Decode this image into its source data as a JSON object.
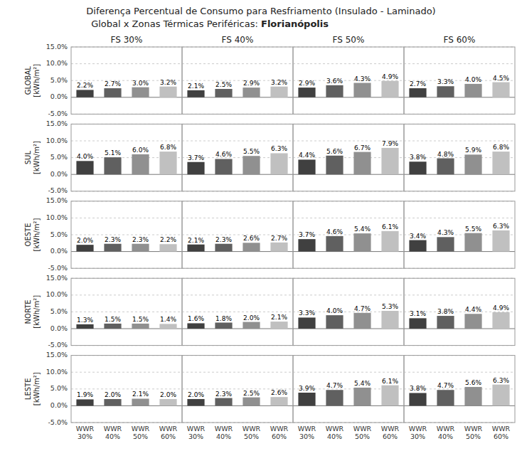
{
  "chart_data": [
    {
      "type": "bar",
      "annotations": [
        "Diferença Percentual de Consumo para Resfriamento (Insulado - Laminado)",
        "Global x Zonas Térmicas Periféricas: ",
        "Florianópolis"
      ],
      "title": "FS 30%",
      "y_label": "GLOBAL\n[kWh/m²]",
      "categories": [
        "WWR\n30%",
        "WWR\n40%",
        "WWR\n50%",
        "WWR\n60%"
      ],
      "values": [
        2.2,
        2.7,
        3.0,
        3.2
      ],
      "value_labels": [
        "2.2%",
        "2.7%",
        "3.0%",
        "3.2%"
      ],
      "colors": [
        "#404040",
        "#606060",
        "#909090",
        "#c0c0c0"
      ],
      "ylim": [
        -5,
        15
      ],
      "yticks": [
        {
          "value": -5,
          "label": "-5.0%"
        },
        {
          "value": 0,
          "label": "0.0%"
        },
        {
          "value": 5,
          "label": "5.0%"
        },
        {
          "value": 10,
          "label": "10.0%"
        },
        {
          "value": 15,
          "label": "15.0%"
        }
      ],
      "grid": true,
      "data_labels": true,
      "tick_labels": "y"
    },
    {
      "type": "bar",
      "title": "FS 40%",
      "categories": [
        "WWR\n30%",
        "WWR\n40%",
        "WWR\n50%",
        "WWR\n60%"
      ],
      "values": [
        2.1,
        2.5,
        2.9,
        3.2
      ],
      "value_labels": [
        "2.1%",
        "2.5%",
        "2.9%",
        "3.2%"
      ],
      "colors": [
        "#404040",
        "#606060",
        "#909090",
        "#c0c0c0"
      ],
      "ylim": [
        -5,
        15
      ],
      "yticks": [
        {
          "value": -5,
          "label": "-5.0%"
        },
        {
          "value": 0,
          "label": "0.0%"
        },
        {
          "value": 5,
          "label": "5.0%"
        },
        {
          "value": 10,
          "label": "10.0%"
        },
        {
          "value": 15,
          "label": "15.0%"
        }
      ],
      "grid": true,
      "data_labels": true,
      "tick_labels": false
    },
    {
      "type": "bar",
      "title": "FS 50%",
      "categories": [
        "WWR\n30%",
        "WWR\n40%",
        "WWR\n50%",
        "WWR\n60%"
      ],
      "values": [
        2.9,
        3.6,
        4.3,
        4.9
      ],
      "value_labels": [
        "2.9%",
        "3.6%",
        "4.3%",
        "4.9%"
      ],
      "colors": [
        "#404040",
        "#606060",
        "#909090",
        "#c0c0c0"
      ],
      "ylim": [
        -5,
        15
      ],
      "yticks": [
        {
          "value": -5,
          "label": "-5.0%"
        },
        {
          "value": 0,
          "label": "0.0%"
        },
        {
          "value": 5,
          "label": "5.0%"
        },
        {
          "value": 10,
          "label": "10.0%"
        },
        {
          "value": 15,
          "label": "15.0%"
        }
      ],
      "grid": true,
      "data_labels": true,
      "tick_labels": false
    },
    {
      "type": "bar",
      "title": "FS 60%",
      "categories": [
        "WWR\n30%",
        "WWR\n40%",
        "WWR\n50%",
        "WWR\n60%"
      ],
      "values": [
        2.7,
        3.3,
        4.0,
        4.5
      ],
      "value_labels": [
        "2.7%",
        "3.3%",
        "4.0%",
        "4.5%"
      ],
      "colors": [
        "#404040",
        "#606060",
        "#909090",
        "#c0c0c0"
      ],
      "ylim": [
        -5,
        15
      ],
      "yticks": [
        {
          "value": -5,
          "label": "-5.0%"
        },
        {
          "value": 0,
          "label": "0.0%"
        },
        {
          "value": 5,
          "label": "5.0%"
        },
        {
          "value": 10,
          "label": "10.0%"
        },
        {
          "value": 15,
          "label": "15.0%"
        }
      ],
      "grid": true,
      "data_labels": true,
      "tick_labels": false
    },
    {
      "type": "bar",
      "y_label": "SUL\n[kWh/m²]",
      "categories": [
        "WWR\n30%",
        "WWR\n40%",
        "WWR\n50%",
        "WWR\n60%"
      ],
      "values": [
        4.0,
        5.1,
        6.0,
        6.8
      ],
      "value_labels": [
        "4.0%",
        "5.1%",
        "6.0%",
        "6.8%"
      ],
      "colors": [
        "#404040",
        "#606060",
        "#909090",
        "#c0c0c0"
      ],
      "ylim": [
        -5,
        15
      ],
      "yticks": [
        {
          "value": -5,
          "label": "-5.0%"
        },
        {
          "value": 0,
          "label": "0.0%"
        },
        {
          "value": 5,
          "label": "5.0%"
        },
        {
          "value": 10,
          "label": "10.0%"
        },
        {
          "value": 15,
          "label": "15.0%"
        }
      ],
      "grid": true,
      "data_labels": true,
      "tick_labels": "y"
    },
    {
      "type": "bar",
      "categories": [
        "WWR\n30%",
        "WWR\n40%",
        "WWR\n50%",
        "WWR\n60%"
      ],
      "values": [
        3.7,
        4.6,
        5.5,
        6.3
      ],
      "value_labels": [
        "3.7%",
        "4.6%",
        "5.5%",
        "6.3%"
      ],
      "colors": [
        "#404040",
        "#606060",
        "#909090",
        "#c0c0c0"
      ],
      "ylim": [
        -5,
        15
      ],
      "yticks": [
        {
          "value": -5,
          "label": "-5.0%"
        },
        {
          "value": 0,
          "label": "0.0%"
        },
        {
          "value": 5,
          "label": "5.0%"
        },
        {
          "value": 10,
          "label": "10.0%"
        },
        {
          "value": 15,
          "label": "15.0%"
        }
      ],
      "grid": true,
      "data_labels": true,
      "tick_labels": false
    },
    {
      "type": "bar",
      "categories": [
        "WWR\n30%",
        "WWR\n40%",
        "WWR\n50%",
        "WWR\n60%"
      ],
      "values": [
        4.4,
        5.6,
        6.7,
        7.9
      ],
      "value_labels": [
        "4.4%",
        "5.6%",
        "6.7%",
        "7.9%"
      ],
      "colors": [
        "#404040",
        "#606060",
        "#909090",
        "#c0c0c0"
      ],
      "ylim": [
        -5,
        15
      ],
      "yticks": [
        {
          "value": -5,
          "label": "-5.0%"
        },
        {
          "value": 0,
          "label": "0.0%"
        },
        {
          "value": 5,
          "label": "5.0%"
        },
        {
          "value": 10,
          "label": "10.0%"
        },
        {
          "value": 15,
          "label": "15.0%"
        }
      ],
      "grid": true,
      "data_labels": true,
      "tick_labels": false
    },
    {
      "type": "bar",
      "categories": [
        "WWR\n30%",
        "WWR\n40%",
        "WWR\n50%",
        "WWR\n60%"
      ],
      "values": [
        3.8,
        4.8,
        5.9,
        6.8
      ],
      "value_labels": [
        "3.8%",
        "4.8%",
        "5.9%",
        "6.8%"
      ],
      "colors": [
        "#404040",
        "#606060",
        "#909090",
        "#c0c0c0"
      ],
      "ylim": [
        -5,
        15
      ],
      "yticks": [
        {
          "value": -5,
          "label": "-5.0%"
        },
        {
          "value": 0,
          "label": "0.0%"
        },
        {
          "value": 5,
          "label": "5.0%"
        },
        {
          "value": 10,
          "label": "10.0%"
        },
        {
          "value": 15,
          "label": "15.0%"
        }
      ],
      "grid": true,
      "data_labels": true,
      "tick_labels": false
    },
    {
      "type": "bar",
      "y_label": "OESTE\n[kWh/m²]",
      "categories": [
        "WWR\n30%",
        "WWR\n40%",
        "WWR\n50%",
        "WWR\n60%"
      ],
      "values": [
        2.0,
        2.3,
        2.3,
        2.2
      ],
      "value_labels": [
        "2.0%",
        "2.3%",
        "2.3%",
        "2.2%"
      ],
      "colors": [
        "#404040",
        "#606060",
        "#909090",
        "#c0c0c0"
      ],
      "ylim": [
        -5,
        15
      ],
      "yticks": [
        {
          "value": -5,
          "label": "-5.0%"
        },
        {
          "value": 0,
          "label": "0.0%"
        },
        {
          "value": 5,
          "label": "5.0%"
        },
        {
          "value": 10,
          "label": "10.0%"
        },
        {
          "value": 15,
          "label": "15.0%"
        }
      ],
      "grid": true,
      "data_labels": true,
      "tick_labels": "y"
    },
    {
      "type": "bar",
      "categories": [
        "WWR\n30%",
        "WWR\n40%",
        "WWR\n50%",
        "WWR\n60%"
      ],
      "values": [
        2.1,
        2.3,
        2.6,
        2.7
      ],
      "value_labels": [
        "2.1%",
        "2.3%",
        "2.6%",
        "2.7%"
      ],
      "colors": [
        "#404040",
        "#606060",
        "#909090",
        "#c0c0c0"
      ],
      "ylim": [
        -5,
        15
      ],
      "yticks": [
        {
          "value": -5,
          "label": "-5.0%"
        },
        {
          "value": 0,
          "label": "0.0%"
        },
        {
          "value": 5,
          "label": "5.0%"
        },
        {
          "value": 10,
          "label": "10.0%"
        },
        {
          "value": 15,
          "label": "15.0%"
        }
      ],
      "grid": true,
      "data_labels": true,
      "tick_labels": false
    },
    {
      "type": "bar",
      "categories": [
        "WWR\n30%",
        "WWR\n40%",
        "WWR\n50%",
        "WWR\n60%"
      ],
      "values": [
        3.7,
        4.6,
        5.4,
        6.1
      ],
      "value_labels": [
        "3.7%",
        "4.6%",
        "5.4%",
        "6.1%"
      ],
      "colors": [
        "#404040",
        "#606060",
        "#909090",
        "#c0c0c0"
      ],
      "ylim": [
        -5,
        15
      ],
      "yticks": [
        {
          "value": -5,
          "label": "-5.0%"
        },
        {
          "value": 0,
          "label": "0.0%"
        },
        {
          "value": 5,
          "label": "5.0%"
        },
        {
          "value": 10,
          "label": "10.0%"
        },
        {
          "value": 15,
          "label": "15.0%"
        }
      ],
      "grid": true,
      "data_labels": true,
      "tick_labels": false
    },
    {
      "type": "bar",
      "categories": [
        "WWR\n30%",
        "WWR\n40%",
        "WWR\n50%",
        "WWR\n60%"
      ],
      "values": [
        3.4,
        4.3,
        5.5,
        6.3
      ],
      "value_labels": [
        "3.4%",
        "4.3%",
        "5.5%",
        "6.3%"
      ],
      "colors": [
        "#404040",
        "#606060",
        "#909090",
        "#c0c0c0"
      ],
      "ylim": [
        -5,
        15
      ],
      "yticks": [
        {
          "value": -5,
          "label": "-5.0%"
        },
        {
          "value": 0,
          "label": "0.0%"
        },
        {
          "value": 5,
          "label": "5.0%"
        },
        {
          "value": 10,
          "label": "10.0%"
        },
        {
          "value": 15,
          "label": "15.0%"
        }
      ],
      "grid": true,
      "data_labels": true,
      "tick_labels": false
    },
    {
      "type": "bar",
      "y_label": "NORTE\n[kWh/m²]",
      "categories": [
        "WWR\n30%",
        "WWR\n40%",
        "WWR\n50%",
        "WWR\n60%"
      ],
      "values": [
        1.3,
        1.5,
        1.5,
        1.4
      ],
      "value_labels": [
        "1.3%",
        "1.5%",
        "1.5%",
        "1.4%"
      ],
      "colors": [
        "#404040",
        "#606060",
        "#909090",
        "#c0c0c0"
      ],
      "ylim": [
        -5,
        15
      ],
      "yticks": [
        {
          "value": -5,
          "label": "-5.0%"
        },
        {
          "value": 0,
          "label": "0.0%"
        },
        {
          "value": 5,
          "label": "5.0%"
        },
        {
          "value": 10,
          "label": "10.0%"
        },
        {
          "value": 15,
          "label": "15.0%"
        }
      ],
      "grid": true,
      "data_labels": true,
      "tick_labels": "y"
    },
    {
      "type": "bar",
      "categories": [
        "WWR\n30%",
        "WWR\n40%",
        "WWR\n50%",
        "WWR\n60%"
      ],
      "values": [
        1.6,
        1.8,
        2.0,
        2.1
      ],
      "value_labels": [
        "1.6%",
        "1.8%",
        "2.0%",
        "2.1%"
      ],
      "colors": [
        "#404040",
        "#606060",
        "#909090",
        "#c0c0c0"
      ],
      "ylim": [
        -5,
        15
      ],
      "yticks": [
        {
          "value": -5,
          "label": "-5.0%"
        },
        {
          "value": 0,
          "label": "0.0%"
        },
        {
          "value": 5,
          "label": "5.0%"
        },
        {
          "value": 10,
          "label": "10.0%"
        },
        {
          "value": 15,
          "label": "15.0%"
        }
      ],
      "grid": true,
      "data_labels": true,
      "tick_labels": false
    },
    {
      "type": "bar",
      "categories": [
        "WWR\n30%",
        "WWR\n40%",
        "WWR\n50%",
        "WWR\n60%"
      ],
      "values": [
        3.3,
        4.0,
        4.7,
        5.3
      ],
      "value_labels": [
        "3.3%",
        "4.0%",
        "4.7%",
        "5.3%"
      ],
      "colors": [
        "#404040",
        "#606060",
        "#909090",
        "#c0c0c0"
      ],
      "ylim": [
        -5,
        15
      ],
      "yticks": [
        {
          "value": -5,
          "label": "-5.0%"
        },
        {
          "value": 0,
          "label": "0.0%"
        },
        {
          "value": 5,
          "label": "5.0%"
        },
        {
          "value": 10,
          "label": "10.0%"
        },
        {
          "value": 15,
          "label": "15.0%"
        }
      ],
      "grid": true,
      "data_labels": true,
      "tick_labels": false
    },
    {
      "type": "bar",
      "categories": [
        "WWR\n30%",
        "WWR\n40%",
        "WWR\n50%",
        "WWR\n60%"
      ],
      "values": [
        3.1,
        3.8,
        4.4,
        4.9
      ],
      "value_labels": [
        "3.1%",
        "3.8%",
        "4.4%",
        "4.9%"
      ],
      "colors": [
        "#404040",
        "#606060",
        "#909090",
        "#c0c0c0"
      ],
      "ylim": [
        -5,
        15
      ],
      "yticks": [
        {
          "value": -5,
          "label": "-5.0%"
        },
        {
          "value": 0,
          "label": "0.0%"
        },
        {
          "value": 5,
          "label": "5.0%"
        },
        {
          "value": 10,
          "label": "10.0%"
        },
        {
          "value": 15,
          "label": "15.0%"
        }
      ],
      "grid": true,
      "data_labels": true,
      "tick_labels": false
    },
    {
      "type": "bar",
      "y_label": "LESTE\n[kWh/m²]",
      "categories": [
        "WWR\n30%",
        "WWR\n40%",
        "WWR\n50%",
        "WWR\n60%"
      ],
      "values": [
        1.9,
        2.0,
        2.1,
        2.0
      ],
      "value_labels": [
        "1.9%",
        "2.0%",
        "2.1%",
        "2.0%"
      ],
      "colors": [
        "#404040",
        "#606060",
        "#909090",
        "#c0c0c0"
      ],
      "ylim": [
        -5,
        15
      ],
      "yticks": [
        {
          "value": -5,
          "label": "-5.0%"
        },
        {
          "value": 0,
          "label": "0.0%"
        },
        {
          "value": 5,
          "label": "5.0%"
        },
        {
          "value": 10,
          "label": "10.0%"
        },
        {
          "value": 15,
          "label": "15.0%"
        }
      ],
      "grid": true,
      "data_labels": true
    },
    {
      "type": "bar",
      "categories": [
        "WWR\n30%",
        "WWR\n40%",
        "WWR\n50%",
        "WWR\n60%"
      ],
      "values": [
        2.0,
        2.3,
        2.5,
        2.6
      ],
      "value_labels": [
        "2.0%",
        "2.3%",
        "2.5%",
        "2.6%"
      ],
      "colors": [
        "#404040",
        "#606060",
        "#909090",
        "#c0c0c0"
      ],
      "ylim": [
        -5,
        15
      ],
      "yticks": [
        {
          "value": -5,
          "label": "-5.0%"
        },
        {
          "value": 0,
          "label": "0.0%"
        },
        {
          "value": 5,
          "label": "5.0%"
        },
        {
          "value": 10,
          "label": "10.0%"
        },
        {
          "value": 15,
          "label": "15.0%"
        }
      ],
      "grid": true,
      "data_labels": true,
      "tick_labels": "x"
    },
    {
      "type": "bar",
      "categories": [
        "WWR\n30%",
        "WWR\n40%",
        "WWR\n50%",
        "WWR\n60%"
      ],
      "values": [
        3.9,
        4.7,
        5.4,
        6.1
      ],
      "value_labels": [
        "3.9%",
        "4.7%",
        "5.4%",
        "6.1%"
      ],
      "colors": [
        "#404040",
        "#606060",
        "#909090",
        "#c0c0c0"
      ],
      "ylim": [
        -5,
        15
      ],
      "yticks": [
        {
          "value": -5,
          "label": "-5.0%"
        },
        {
          "value": 0,
          "label": "0.0%"
        },
        {
          "value": 5,
          "label": "5.0%"
        },
        {
          "value": 10,
          "label": "10.0%"
        },
        {
          "value": 15,
          "label": "15.0%"
        }
      ],
      "grid": true,
      "data_labels": true,
      "tick_labels": "x"
    },
    {
      "type": "bar",
      "categories": [
        "WWR\n30%",
        "WWR\n40%",
        "WWR\n50%",
        "WWR\n60%"
      ],
      "values": [
        3.8,
        4.7,
        5.6,
        6.3
      ],
      "value_labels": [
        "3.8%",
        "4.7%",
        "5.6%",
        "6.3%"
      ],
      "colors": [
        "#404040",
        "#606060",
        "#909090",
        "#c0c0c0"
      ],
      "ylim": [
        -5,
        15
      ],
      "yticks": [
        {
          "value": -5,
          "label": "-5.0%"
        },
        {
          "value": 0,
          "label": "0.0%"
        },
        {
          "value": 5,
          "label": "5.0%"
        },
        {
          "value": 10,
          "label": "10.0%"
        },
        {
          "value": 15,
          "label": "15.0%"
        }
      ],
      "grid": true,
      "data_labels": true,
      "tick_labels": "x"
    }
  ]
}
